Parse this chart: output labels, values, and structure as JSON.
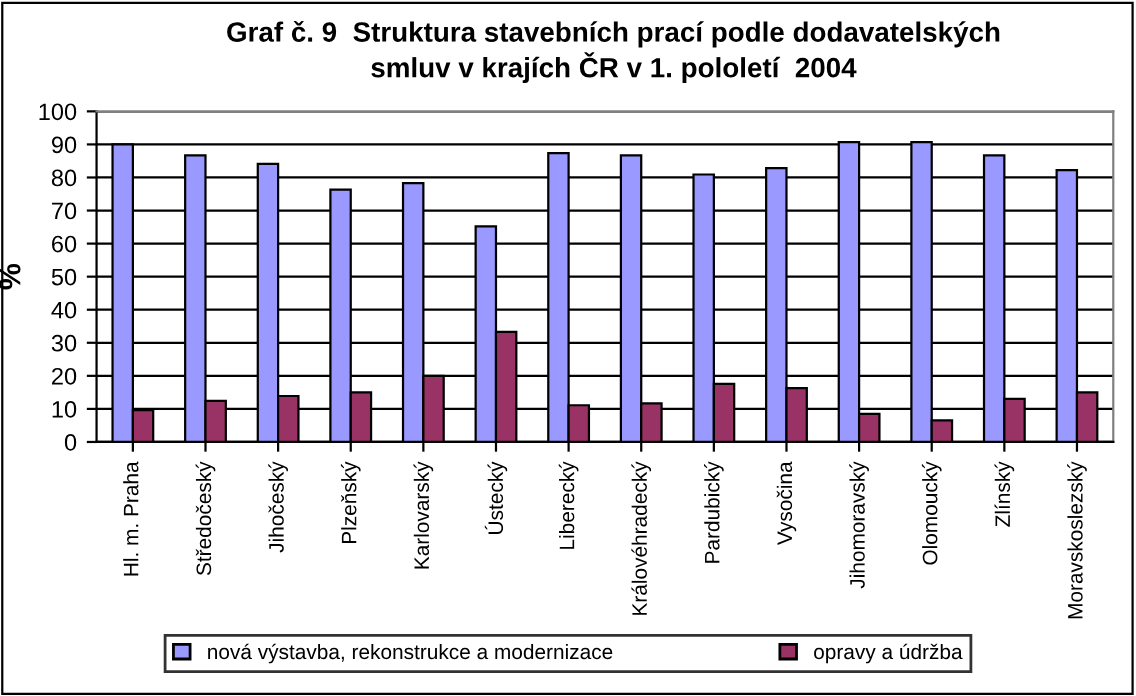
{
  "chart_data": {
    "type": "bar",
    "title": "Graf č. 9  Struktura stavebních prací podle dodavatelských\nsmluv v krajích ČR v 1. pololetí  2004",
    "ylabel": "%",
    "categories": [
      "Hl. m. Praha",
      "Středočeský",
      "Jihočeský",
      "Plzeňský",
      "Karlovarský",
      "Ústecký",
      "Liberecký",
      "Královéhradecký",
      "Pardubický",
      "Vysočina",
      "Jihomoravský",
      "Olomoucký",
      "Zlínský",
      "Moravskoslezský"
    ],
    "series": [
      {
        "name": "nová výstavba, rekonstrukce a modernizace",
        "color": "#9999ff",
        "values": [
          90,
          86.7,
          84.1,
          76.3,
          78.3,
          65.2,
          87.4,
          86.7,
          80.9,
          82.8,
          90.7,
          90.7,
          86.7,
          82.2
        ]
      },
      {
        "name": "opravy a údržba",
        "color": "#993366",
        "values": [
          9.6,
          12.4,
          13.9,
          15,
          20,
          33.3,
          11.1,
          11.7,
          17.6,
          16.3,
          8.5,
          6.5,
          13,
          15
        ]
      }
    ],
    "ylim": [
      0,
      100
    ],
    "yticks": [
      0,
      10,
      20,
      30,
      40,
      50,
      60,
      70,
      80,
      90,
      100
    ],
    "grid": "y",
    "legend": "bottom"
  }
}
